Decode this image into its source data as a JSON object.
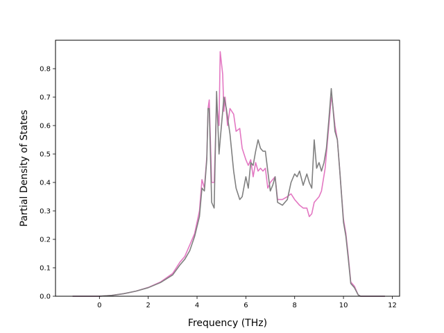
{
  "chart_data": {
    "type": "line",
    "title": "",
    "xlabel": "Frequency (THz)",
    "ylabel": "Partial Density of States",
    "xlim": [
      -1.8,
      12.3
    ],
    "ylim": [
      0.0,
      0.9
    ],
    "xticks": [
      0,
      2,
      4,
      6,
      8,
      10,
      12
    ],
    "yticks": [
      0.0,
      0.1,
      0.2,
      0.3,
      0.4,
      0.5,
      0.6,
      0.7,
      0.8
    ],
    "xtick_labels": [
      "0",
      "2",
      "4",
      "6",
      "8",
      "10",
      "12"
    ],
    "ytick_labels": [
      "0.0",
      "0.1",
      "0.2",
      "0.3",
      "0.4",
      "0.5",
      "0.6",
      "0.7",
      "0.8"
    ],
    "grid": false,
    "legend": "none",
    "series": [
      {
        "color": "#e377c2",
        "points": [
          [
            -1.1,
            0.0
          ],
          [
            0.0,
            0.0
          ],
          [
            0.5,
            0.003
          ],
          [
            1.0,
            0.009
          ],
          [
            1.5,
            0.018
          ],
          [
            2.0,
            0.031
          ],
          [
            2.5,
            0.05
          ],
          [
            3.0,
            0.08
          ],
          [
            3.3,
            0.12
          ],
          [
            3.5,
            0.14
          ],
          [
            3.7,
            0.18
          ],
          [
            3.9,
            0.22
          ],
          [
            4.1,
            0.3
          ],
          [
            4.2,
            0.41
          ],
          [
            4.3,
            0.38
          ],
          [
            4.4,
            0.49
          ],
          [
            4.45,
            0.66
          ],
          [
            4.5,
            0.69
          ],
          [
            4.6,
            0.4
          ],
          [
            4.7,
            0.4
          ],
          [
            4.8,
            0.68
          ],
          [
            4.9,
            0.6
          ],
          [
            4.95,
            0.86
          ],
          [
            5.05,
            0.78
          ],
          [
            5.1,
            0.65
          ],
          [
            5.15,
            0.7
          ],
          [
            5.25,
            0.6
          ],
          [
            5.35,
            0.66
          ],
          [
            5.5,
            0.64
          ],
          [
            5.6,
            0.58
          ],
          [
            5.75,
            0.59
          ],
          [
            5.85,
            0.52
          ],
          [
            6.0,
            0.48
          ],
          [
            6.1,
            0.46
          ],
          [
            6.2,
            0.48
          ],
          [
            6.3,
            0.42
          ],
          [
            6.4,
            0.47
          ],
          [
            6.5,
            0.44
          ],
          [
            6.6,
            0.45
          ],
          [
            6.7,
            0.44
          ],
          [
            6.8,
            0.45
          ],
          [
            6.9,
            0.38
          ],
          [
            7.0,
            0.4
          ],
          [
            7.2,
            0.42
          ],
          [
            7.3,
            0.34
          ],
          [
            7.5,
            0.34
          ],
          [
            7.7,
            0.35
          ],
          [
            7.85,
            0.36
          ],
          [
            8.0,
            0.34
          ],
          [
            8.2,
            0.32
          ],
          [
            8.35,
            0.31
          ],
          [
            8.5,
            0.31
          ],
          [
            8.6,
            0.28
          ],
          [
            8.7,
            0.29
          ],
          [
            8.8,
            0.33
          ],
          [
            8.9,
            0.34
          ],
          [
            9.0,
            0.35
          ],
          [
            9.1,
            0.37
          ],
          [
            9.25,
            0.45
          ],
          [
            9.4,
            0.6
          ],
          [
            9.5,
            0.7
          ],
          [
            9.55,
            0.68
          ],
          [
            9.65,
            0.6
          ],
          [
            9.75,
            0.55
          ],
          [
            9.85,
            0.44
          ],
          [
            9.9,
            0.38
          ],
          [
            10.0,
            0.27
          ],
          [
            10.1,
            0.22
          ],
          [
            10.2,
            0.14
          ],
          [
            10.3,
            0.05
          ],
          [
            10.45,
            0.035
          ],
          [
            10.6,
            0.005
          ],
          [
            10.7,
            0.0
          ],
          [
            11.7,
            0.0
          ]
        ]
      },
      {
        "color": "#7f7f7f",
        "points": [
          [
            -1.1,
            0.0
          ],
          [
            0.0,
            0.0
          ],
          [
            0.5,
            0.003
          ],
          [
            1.0,
            0.009
          ],
          [
            1.5,
            0.018
          ],
          [
            2.0,
            0.03
          ],
          [
            2.5,
            0.048
          ],
          [
            3.0,
            0.075
          ],
          [
            3.3,
            0.11
          ],
          [
            3.5,
            0.13
          ],
          [
            3.7,
            0.16
          ],
          [
            3.9,
            0.21
          ],
          [
            4.1,
            0.28
          ],
          [
            4.2,
            0.38
          ],
          [
            4.3,
            0.37
          ],
          [
            4.4,
            0.48
          ],
          [
            4.45,
            0.66
          ],
          [
            4.5,
            0.66
          ],
          [
            4.6,
            0.33
          ],
          [
            4.7,
            0.31
          ],
          [
            4.8,
            0.72
          ],
          [
            4.9,
            0.5
          ],
          [
            4.95,
            0.55
          ],
          [
            5.05,
            0.65
          ],
          [
            5.1,
            0.7
          ],
          [
            5.2,
            0.66
          ],
          [
            5.35,
            0.57
          ],
          [
            5.5,
            0.44
          ],
          [
            5.6,
            0.38
          ],
          [
            5.75,
            0.34
          ],
          [
            5.85,
            0.35
          ],
          [
            6.0,
            0.42
          ],
          [
            6.1,
            0.38
          ],
          [
            6.2,
            0.47
          ],
          [
            6.3,
            0.46
          ],
          [
            6.4,
            0.51
          ],
          [
            6.5,
            0.55
          ],
          [
            6.6,
            0.52
          ],
          [
            6.7,
            0.51
          ],
          [
            6.8,
            0.51
          ],
          [
            6.9,
            0.44
          ],
          [
            7.0,
            0.37
          ],
          [
            7.1,
            0.39
          ],
          [
            7.2,
            0.42
          ],
          [
            7.3,
            0.33
          ],
          [
            7.5,
            0.32
          ],
          [
            7.7,
            0.34
          ],
          [
            7.85,
            0.4
          ],
          [
            8.0,
            0.43
          ],
          [
            8.1,
            0.42
          ],
          [
            8.2,
            0.44
          ],
          [
            8.35,
            0.39
          ],
          [
            8.5,
            0.43
          ],
          [
            8.6,
            0.4
          ],
          [
            8.7,
            0.38
          ],
          [
            8.8,
            0.55
          ],
          [
            8.9,
            0.45
          ],
          [
            9.0,
            0.47
          ],
          [
            9.1,
            0.44
          ],
          [
            9.2,
            0.47
          ],
          [
            9.3,
            0.52
          ],
          [
            9.4,
            0.62
          ],
          [
            9.5,
            0.73
          ],
          [
            9.55,
            0.68
          ],
          [
            9.65,
            0.58
          ],
          [
            9.75,
            0.55
          ],
          [
            9.85,
            0.44
          ],
          [
            9.9,
            0.38
          ],
          [
            10.0,
            0.26
          ],
          [
            10.1,
            0.21
          ],
          [
            10.2,
            0.13
          ],
          [
            10.3,
            0.045
          ],
          [
            10.45,
            0.03
          ],
          [
            10.6,
            0.005
          ],
          [
            10.7,
            0.0
          ],
          [
            11.7,
            0.0
          ]
        ]
      }
    ]
  }
}
